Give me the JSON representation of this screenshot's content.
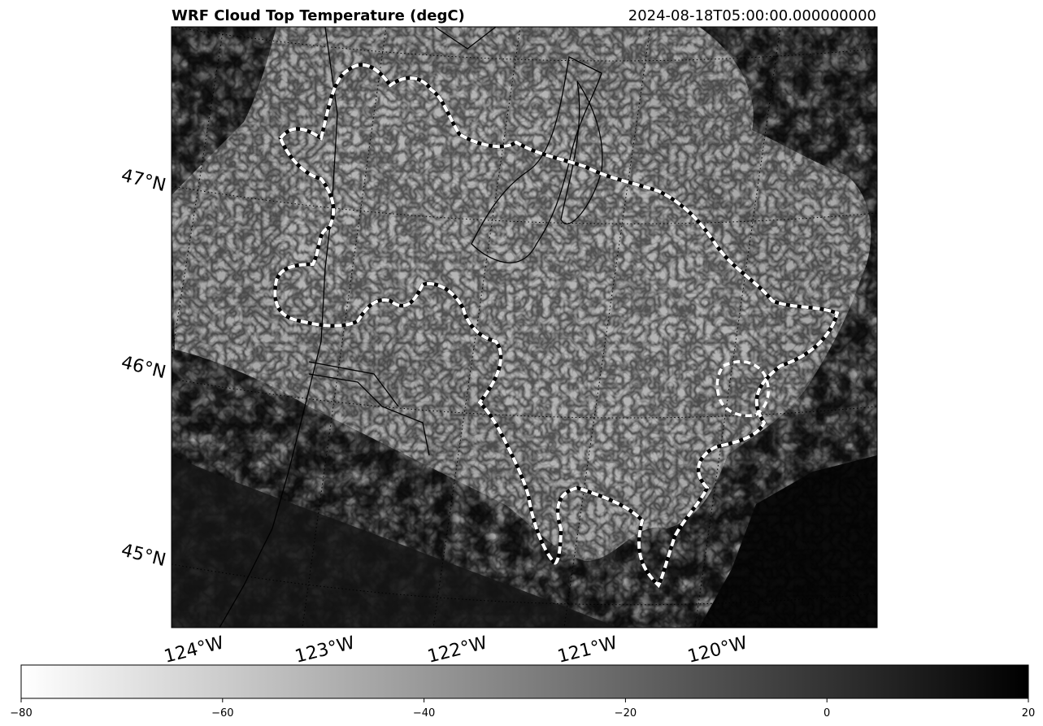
{
  "title": "WRF Cloud Top Temperature (degC)",
  "timestamp": "2024-08-18T05:00:00.000000000",
  "map": {
    "variable": "cloud top temperature",
    "units": "degC",
    "colormap": "gray_r",
    "gridlines": "dotted",
    "latitude_labels": [
      "47°N",
      "46°N",
      "45°N"
    ],
    "longitude_labels": [
      "124°W",
      "123°W",
      "122°W",
      "121°W",
      "120°W"
    ],
    "contour_style": "white/black dashed"
  },
  "colorbar": {
    "orientation": "horizontal",
    "min": -80,
    "max": 20,
    "ticks": [
      -80,
      -60,
      -40,
      -20,
      0,
      20
    ],
    "tick_labels": [
      "−80",
      "−60",
      "−40",
      "−20",
      "0",
      "20"
    ],
    "color_low": "#ffffff",
    "color_high": "#000000"
  }
}
